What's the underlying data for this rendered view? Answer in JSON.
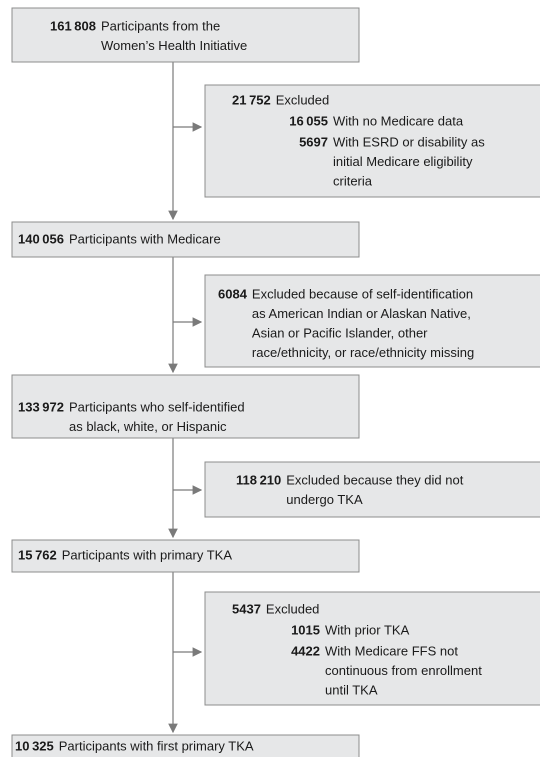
{
  "nodes": [
    {
      "count": "161 808",
      "lines": [
        "Participants from the",
        "Women’s Health Initiative"
      ]
    },
    {
      "count": "140 056",
      "lines": [
        "Participants with Medicare"
      ]
    },
    {
      "count": "133 972",
      "lines": [
        "Participants who self-identified",
        "as black, white, or Hispanic"
      ]
    },
    {
      "count": "15 762",
      "lines": [
        "Participants with primary TKA"
      ]
    },
    {
      "count": "10 325",
      "lines": [
        "Participants with first primary TKA"
      ]
    }
  ],
  "exclusions": [
    {
      "count": "21 752",
      "lines": [
        "Excluded"
      ],
      "items": [
        {
          "count": "16 055",
          "lines": [
            "With no Medicare data"
          ]
        },
        {
          "count": "5697",
          "lines": [
            "With ESRD or disability as",
            "initial Medicare eligibility",
            "criteria"
          ]
        }
      ]
    },
    {
      "count": "6084",
      "lines": [
        "Excluded because of self-identification",
        "as American Indian or Alaskan Native,",
        "Asian or Pacific Islander, other",
        "race/ethnicity, or race/ethnicity missing"
      ],
      "items": []
    },
    {
      "count": "118 210",
      "lines": [
        "Excluded because they did not",
        "undergo TKA"
      ],
      "items": []
    },
    {
      "count": "5437",
      "lines": [
        "Excluded"
      ],
      "items": [
        {
          "count": "1015",
          "lines": [
            "With prior TKA"
          ]
        },
        {
          "count": "4422",
          "lines": [
            "With Medicare FFS not",
            "continuous from enrollment",
            "until TKA"
          ]
        }
      ]
    }
  ]
}
